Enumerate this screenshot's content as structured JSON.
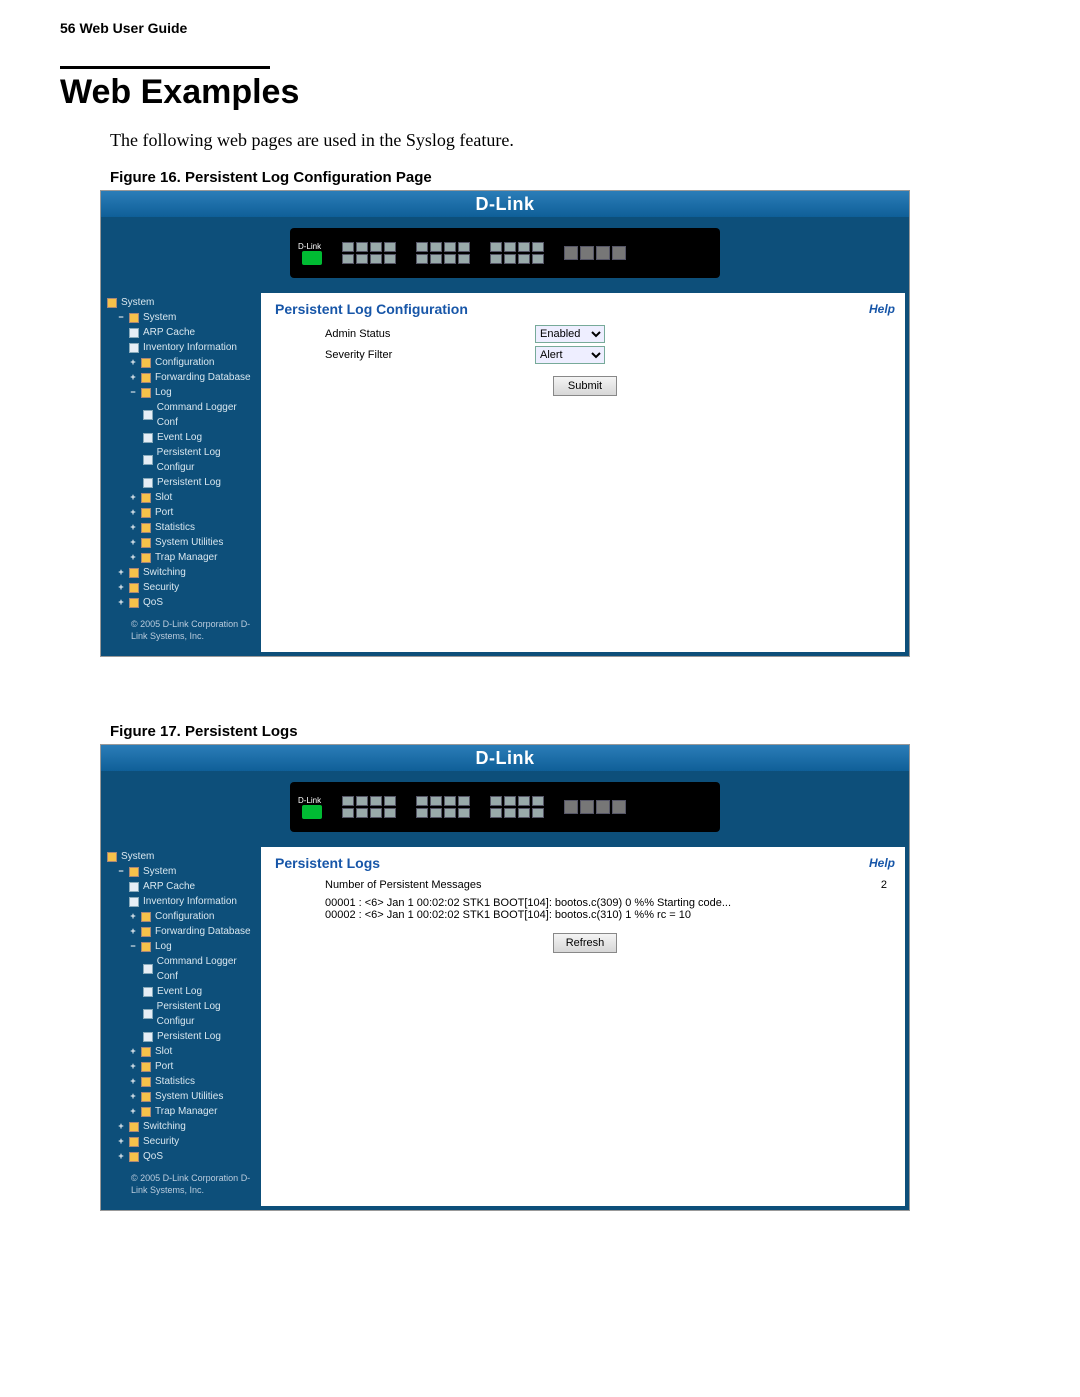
{
  "page": {
    "header": "56    Web User Guide",
    "title": "Web Examples",
    "intro": "The following web pages are used in the Syslog feature."
  },
  "fig16": {
    "caption": "Figure 16. Persistent Log Configuration Page"
  },
  "fig17": {
    "caption": "Figure 17. Persistent Logs"
  },
  "brand": "D-Link",
  "deviceLabel": "D-Link",
  "sidebar": {
    "root": "System",
    "system": "System",
    "items": {
      "arp": "ARP Cache",
      "inv": "Inventory Information",
      "conf": "Configuration",
      "fdb": "Forwarding Database",
      "log": "Log",
      "cmdlog": "Command Logger Conf",
      "eventlog": "Event Log",
      "plogconf": "Persistent Log Configur",
      "plog": "Persistent Log",
      "slot": "Slot",
      "port": "Port",
      "stats": "Statistics",
      "sysutil": "System Utilities",
      "trap": "Trap Manager"
    },
    "switching": "Switching",
    "security": "Security",
    "qos": "QoS",
    "copyright": "© 2005 D-Link Corporation D-Link Systems, Inc."
  },
  "panel1": {
    "title": "Persistent Log Configuration",
    "help": "Help",
    "adminLabel": "Admin Status",
    "adminValue": "Enabled",
    "sevLabel": "Severity Filter",
    "sevValue": "Alert",
    "submit": "Submit"
  },
  "panel2": {
    "title": "Persistent Logs",
    "help": "Help",
    "countLabel": "Number of Persistent Messages",
    "count": "2",
    "line1": "00001 : <6> Jan 1 00:02:02 STK1 BOOT[104]: bootos.c(309) 0 %% Starting code...",
    "line2": "00002 : <6> Jan 1 00:02:02 STK1 BOOT[104]: bootos.c(310) 1 %% rc = 10",
    "refresh": "Refresh"
  }
}
